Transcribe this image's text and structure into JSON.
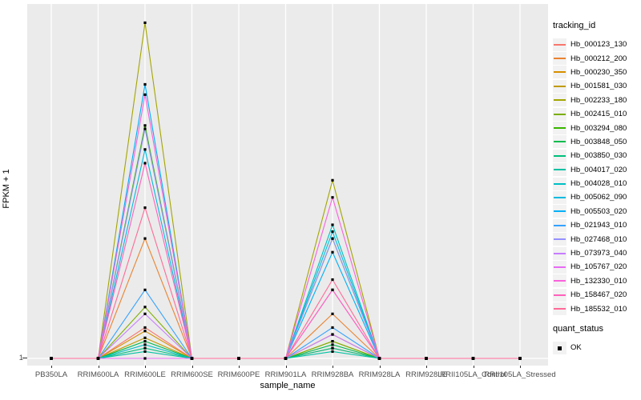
{
  "figure": {
    "y_axis_title": "FPKM + 1",
    "x_axis_title": "sample_name",
    "panel_bg": "#EBEBEB",
    "grid_color": "#FFFFFF",
    "axis_text_color": "#4D4D4D",
    "point_color": "#000000"
  },
  "legend": {
    "color_legend_title": "tracking_id",
    "shape_legend_title": "quant_status",
    "shape_items": [
      {
        "label": "OK",
        "shape": "filled-black-square"
      }
    ],
    "key_bg": "#F2F2F2",
    "position": "right"
  },
  "chart_data": {
    "type": "line",
    "title": "",
    "xlabel": "sample_name",
    "ylabel": "FPKM + 1",
    "y_tick_labels": [
      "1"
    ],
    "ylim": [
      1,
      104
    ],
    "grid": "white vertical gridline at every category; white horizontal gridline at y=1; gray panel",
    "legend_position": "right",
    "point_marker": "small black filled square at every sample on every series (quant_status = OK)",
    "categories": [
      "PB350LA",
      "RRIM600LA",
      "RRIM600LE",
      "RRIM600SE",
      "RRIM600PE",
      "RRIM901LA",
      "RRIM928BA",
      "RRIM928LA",
      "RRIM928LE",
      "RRII105LA_Control",
      "RRII105LA_Stressed"
    ],
    "series": [
      {
        "name": "Hb_000123_130",
        "color": "#F8766D",
        "values": [
          1,
          1,
          10,
          1,
          1,
          1,
          4,
          1,
          1,
          1,
          1
        ]
      },
      {
        "name": "Hb_000212_200",
        "color": "#EA8331",
        "values": [
          1,
          1,
          36,
          1,
          1,
          1,
          14,
          1,
          1,
          1,
          1
        ]
      },
      {
        "name": "Hb_000230_350",
        "color": "#D89000",
        "values": [
          1,
          1,
          9,
          1,
          1,
          1,
          8,
          1,
          1,
          1,
          1
        ]
      },
      {
        "name": "Hb_001581_030",
        "color": "#C09B00",
        "values": [
          1,
          1,
          7,
          1,
          1,
          1,
          6,
          1,
          1,
          1,
          1
        ]
      },
      {
        "name": "Hb_002233_180",
        "color": "#A3A500",
        "values": [
          1,
          1,
          99,
          1,
          1,
          1,
          53,
          1,
          1,
          1,
          1
        ]
      },
      {
        "name": "Hb_002415_010",
        "color": "#7CAE00",
        "values": [
          1,
          1,
          16,
          1,
          1,
          1,
          6,
          1,
          1,
          1,
          1
        ]
      },
      {
        "name": "Hb_003294_080",
        "color": "#39B600",
        "values": [
          1,
          1,
          69,
          1,
          1,
          1,
          36,
          1,
          1,
          1,
          1
        ]
      },
      {
        "name": "Hb_003848_050",
        "color": "#00BB4E",
        "values": [
          1,
          1,
          6,
          1,
          1,
          1,
          5,
          1,
          1,
          1,
          1
        ]
      },
      {
        "name": "Hb_003850_030",
        "color": "#00BF7D",
        "values": [
          1,
          1,
          4,
          1,
          1,
          1,
          4,
          1,
          1,
          1,
          1
        ]
      },
      {
        "name": "Hb_004017_020",
        "color": "#00C1A3",
        "values": [
          1,
          1,
          3,
          1,
          1,
          1,
          3,
          1,
          1,
          1,
          1
        ]
      },
      {
        "name": "Hb_004028_010",
        "color": "#00BFC4",
        "values": [
          1,
          1,
          5,
          1,
          1,
          1,
          40,
          1,
          1,
          1,
          1
        ]
      },
      {
        "name": "Hb_005062_090",
        "color": "#00BAE0",
        "values": [
          1,
          1,
          62,
          1,
          1,
          1,
          38,
          1,
          1,
          1,
          1
        ]
      },
      {
        "name": "Hb_005503_020",
        "color": "#00B0F6",
        "values": [
          1,
          1,
          81,
          1,
          1,
          1,
          32,
          1,
          1,
          1,
          1
        ]
      },
      {
        "name": "Hb_021943_010",
        "color": "#35A2FF",
        "values": [
          1,
          1,
          21,
          1,
          1,
          1,
          10,
          1,
          1,
          1,
          1
        ]
      },
      {
        "name": "Hb_027468_010",
        "color": "#9590FF",
        "values": [
          1,
          1,
          68,
          1,
          1,
          1,
          36,
          1,
          1,
          1,
          1
        ]
      },
      {
        "name": "Hb_073973_040",
        "color": "#C77CFF",
        "values": [
          1,
          1,
          14,
          1,
          1,
          1,
          8,
          1,
          1,
          1,
          1
        ]
      },
      {
        "name": "Hb_105767_020",
        "color": "#E76BF3",
        "values": [
          1,
          1,
          1,
          1,
          1,
          1,
          21,
          1,
          1,
          1,
          1
        ]
      },
      {
        "name": "Hb_132330_010",
        "color": "#FA62DB",
        "values": [
          1,
          1,
          78,
          1,
          1,
          1,
          48,
          1,
          1,
          1,
          1
        ]
      },
      {
        "name": "Hb_158467_020",
        "color": "#FF62BC",
        "values": [
          1,
          1,
          58,
          1,
          1,
          1,
          21,
          1,
          1,
          1,
          1
        ]
      },
      {
        "name": "Hb_185532_010",
        "color": "#FF6A98",
        "values": [
          1,
          1,
          45,
          1,
          1,
          1,
          24,
          1,
          1,
          1,
          1
        ]
      }
    ]
  }
}
